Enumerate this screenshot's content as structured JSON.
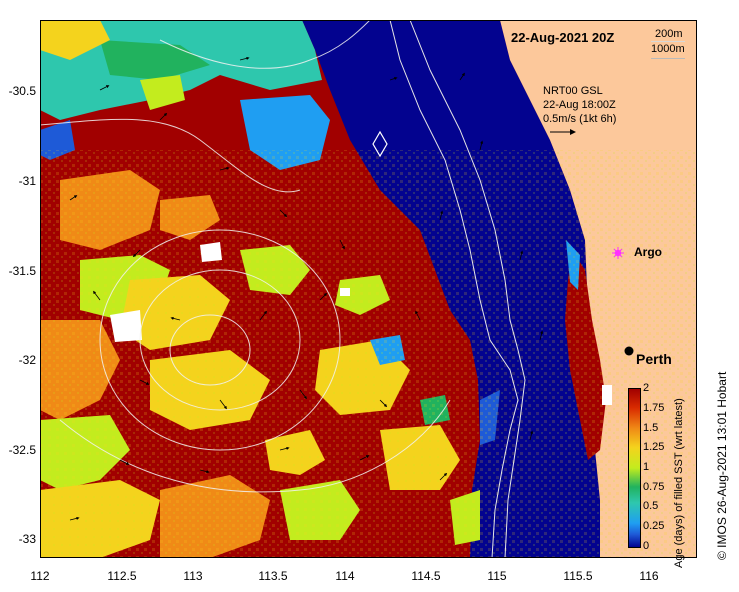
{
  "map": {
    "title": "22-Aug-2021 20Z",
    "credit": "© IMOS 26-Aug-2021 13:01 Hobart",
    "legend_depths": [
      "200m",
      "1000m"
    ],
    "current_note": [
      "NRT00 GSL",
      "22-Aug 18:00Z",
      "0.5m/s (1kt 6h)"
    ],
    "places": [
      {
        "label": "Argo",
        "marker": "magenta-star"
      },
      {
        "label": "Perth",
        "marker": "black-dot"
      }
    ],
    "x_ticks": [
      "112",
      "112.5",
      "113",
      "113.5",
      "114",
      "114.5",
      "115",
      "115.5",
      "116"
    ],
    "y_ticks": [
      "-30.5",
      "-31",
      "-31.5",
      "-32",
      "-32.5",
      "-33"
    ],
    "extent": {
      "lon": [
        112,
        116.3
      ],
      "lat": [
        -33.1,
        -30.05
      ]
    }
  },
  "colorbar": {
    "title": "Age (days) of filled SST (wrt latest)",
    "ticks": [
      "2",
      "1.75",
      "1.5",
      "1.25",
      "1",
      "0.75",
      "0.5",
      "0.25",
      "0"
    ],
    "range": [
      0,
      2
    ]
  },
  "colors": {
    "land": "#fcc89b",
    "deep_blue": "#03038f",
    "dark_red": "#a10000",
    "orange": "#f08a16",
    "yellow": "#f4d31d",
    "lime": "#c3ec1e",
    "green": "#21b25e",
    "teal": "#2ec7ad",
    "light_blue": "#1f9ef2",
    "blue": "#1e5ad7"
  }
}
